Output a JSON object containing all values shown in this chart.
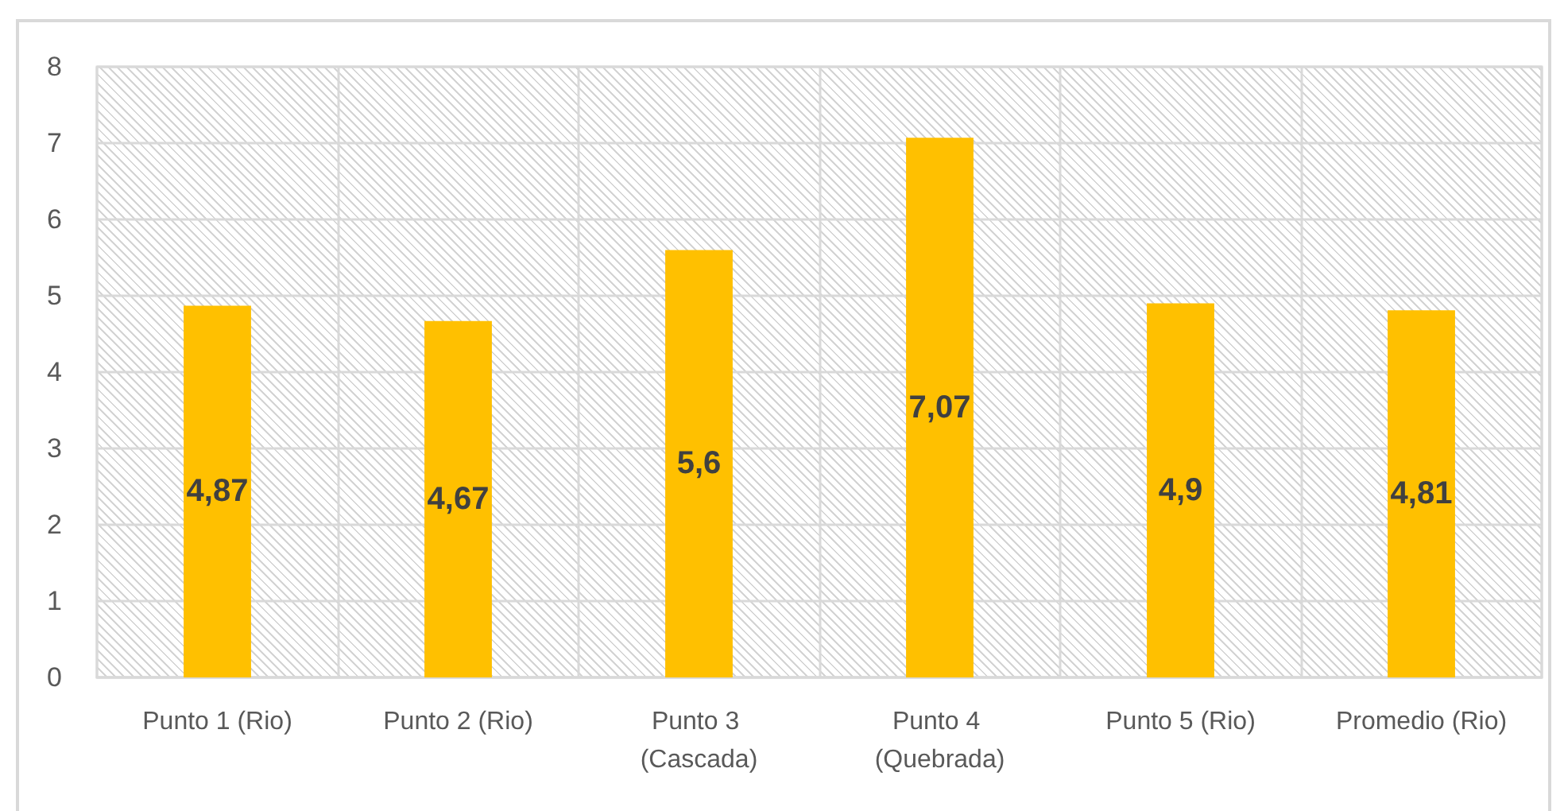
{
  "chart_data": {
    "type": "bar",
    "categories": [
      "Punto 1 (Rio)",
      "Punto 2 (Rio)",
      "Punto 3 (Cascada)",
      "Punto 4 (Quebrada)",
      "Punto 5 (Rio)",
      "Promedio (Rio)"
    ],
    "values": [
      4.87,
      4.67,
      5.6,
      7.07,
      4.9,
      4.81
    ],
    "value_labels": [
      "4,87",
      "4,67",
      "5,6",
      "7,07",
      "4,9",
      "4,81"
    ],
    "color": "#ffc000",
    "ylim": [
      0,
      8
    ],
    "yticks": [
      0,
      1,
      2,
      3,
      4,
      5,
      6,
      7,
      8
    ],
    "grid": true
  }
}
